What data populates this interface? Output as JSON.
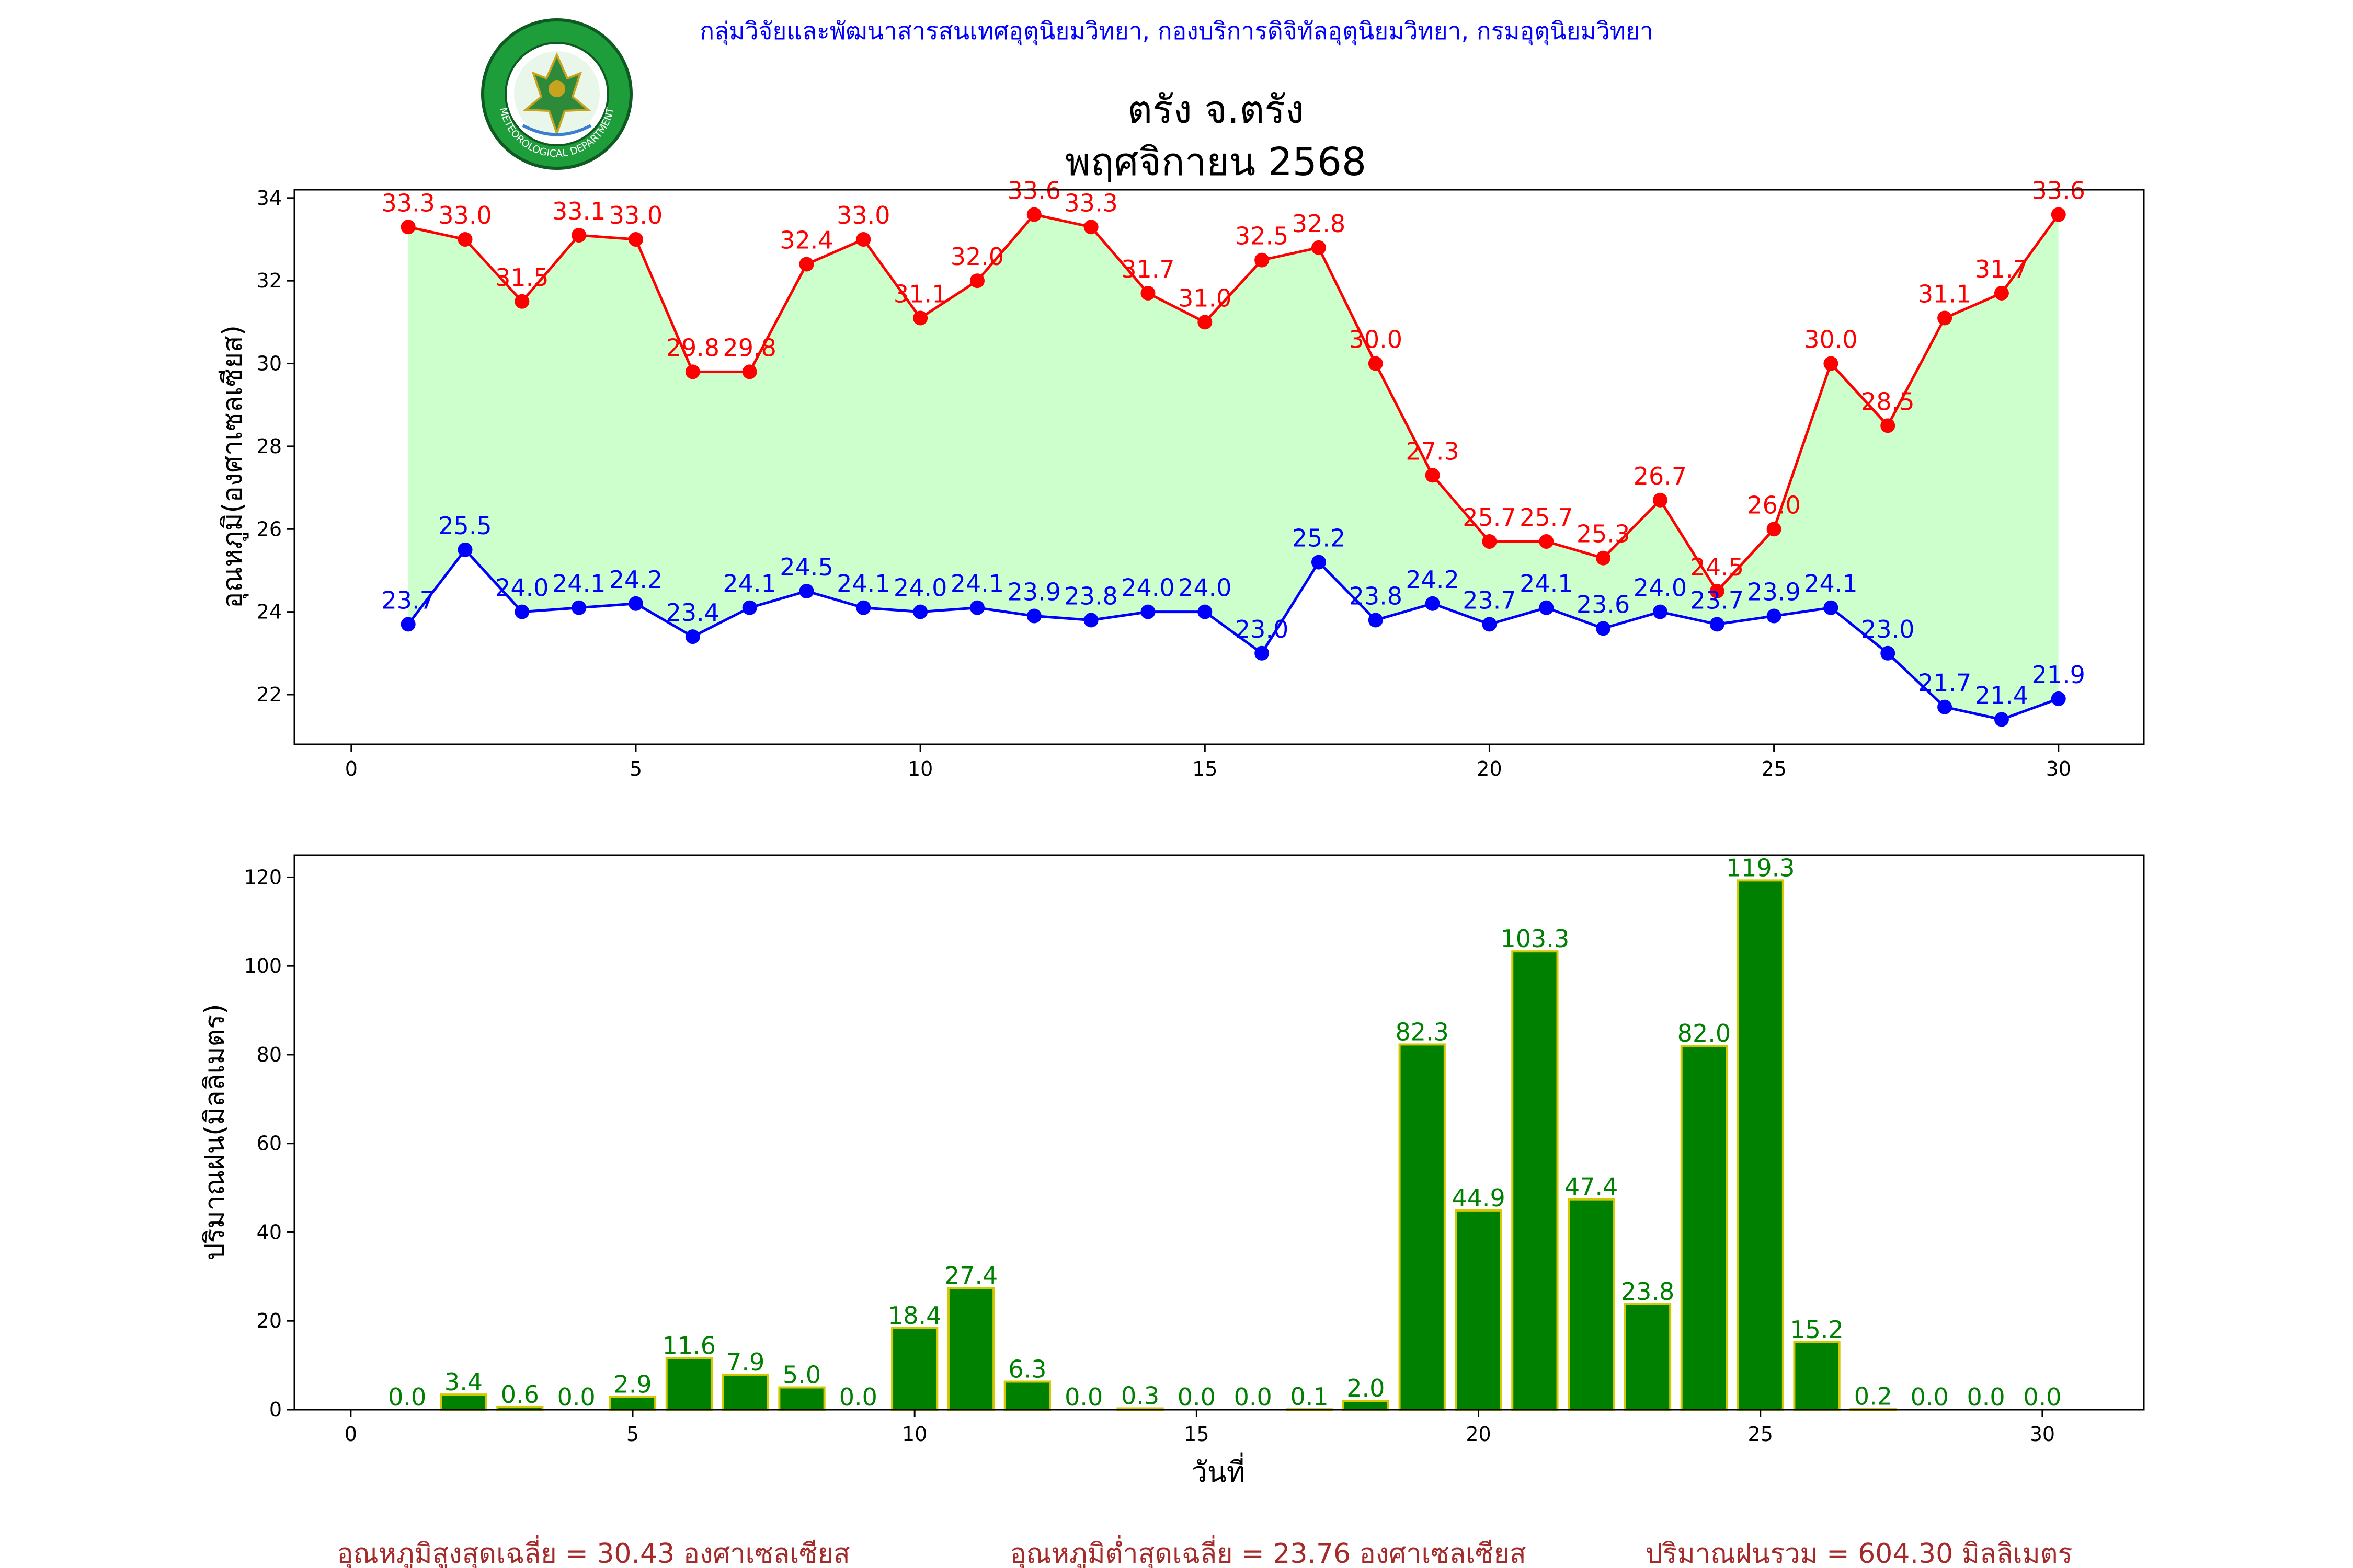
{
  "header": {
    "org_line": "กลุ่มวิจัยและพัฒนาสารสนเทศอุตุนิยมวิทยา, กองบริการดิจิทัลอุตุนิยมวิทยา, กรมอุตุนิยมวิทยา",
    "title_line1": "ตรัง จ.ตรัง",
    "title_line2": "พฤศจิกายน 2568",
    "logo_text_top": "กรมอุตุนิยมวิทยา",
    "logo_text_bottom": "METEOROLOGICAL DEPARTMENT"
  },
  "colors": {
    "max_line": "#ff0000",
    "min_line": "#0000ff",
    "fill": "#ccffcc",
    "bar_fill": "#008000",
    "bar_edge": "#d4c800",
    "bar_label": "#008000",
    "header_text": "#0000ff",
    "footer_text": "#a52a2a"
  },
  "chart_data": [
    {
      "type": "line",
      "ylabel": "อุณหภูมิ(องศาเซลเซียส)",
      "xlabel": "",
      "xlim": [
        -1,
        31.5
      ],
      "ylim": [
        20.8,
        34.2
      ],
      "x_ticks": [
        0,
        5,
        10,
        15,
        20,
        25,
        30
      ],
      "y_ticks": [
        22,
        24,
        26,
        28,
        30,
        32,
        34
      ],
      "grid": false,
      "x": [
        1,
        2,
        3,
        4,
        5,
        6,
        7,
        8,
        9,
        10,
        11,
        12,
        13,
        14,
        15,
        16,
        17,
        18,
        19,
        20,
        21,
        22,
        23,
        24,
        25,
        26,
        27,
        28,
        29,
        30
      ],
      "series": [
        {
          "key": "max",
          "values": [
            33.3,
            33.0,
            31.5,
            33.1,
            33.0,
            29.8,
            29.8,
            32.4,
            33.0,
            31.1,
            32.0,
            33.6,
            33.3,
            31.7,
            31.0,
            32.5,
            32.8,
            30.0,
            27.3,
            25.7,
            25.7,
            25.3,
            26.7,
            24.5,
            26.0,
            30.0,
            28.5,
            31.1,
            31.7,
            33.6
          ],
          "labels": [
            "33.3",
            "33.0",
            "31.5",
            "33.1",
            "33.0",
            "29.8",
            "29.8",
            "32.4",
            "33.0",
            "31.1",
            "32.0",
            "33.6",
            "33.3",
            "31.7",
            "31.0",
            "32.5",
            "32.8",
            "30.0",
            "27.3",
            "25.7",
            "25.7",
            "25.3",
            "26.7",
            "24.5",
            "26.0",
            "30.0",
            "28.5",
            "31.1",
            "31.7",
            "33.6"
          ]
        },
        {
          "key": "min",
          "values": [
            23.7,
            25.5,
            24.0,
            24.1,
            24.2,
            23.4,
            24.1,
            24.5,
            24.1,
            24.0,
            24.1,
            23.9,
            23.8,
            24.0,
            24.0,
            23.0,
            25.2,
            23.8,
            24.2,
            23.7,
            24.1,
            23.6,
            24.0,
            23.7,
            23.9,
            24.1,
            23.0,
            21.7,
            21.4,
            21.9
          ],
          "labels": [
            "23.7",
            "25.5",
            "24.0",
            "24.1",
            "24.2",
            "23.4",
            "24.1",
            "24.5",
            "24.1",
            "24.0",
            "24.1",
            "23.9",
            "23.8",
            "24.0",
            "24.0",
            "23.0",
            "25.2",
            "23.8",
            "24.2",
            "23.7",
            "24.1",
            "23.6",
            "24.0",
            "23.7",
            "23.9",
            "24.1",
            "23.0",
            "21.7",
            "21.4",
            "21.9"
          ]
        }
      ]
    },
    {
      "type": "bar",
      "ylabel": "ปริมาณฝน(มิลลิเมตร)",
      "xlabel": "วันที่",
      "xlim": [
        -1,
        31.8
      ],
      "ylim": [
        0,
        125
      ],
      "x_ticks": [
        0,
        5,
        10,
        15,
        20,
        25,
        30
      ],
      "y_ticks": [
        0,
        20,
        40,
        60,
        80,
        100,
        120
      ],
      "grid": false,
      "x": [
        1,
        2,
        3,
        4,
        5,
        6,
        7,
        8,
        9,
        10,
        11,
        12,
        13,
        14,
        15,
        16,
        17,
        18,
        19,
        20,
        21,
        22,
        23,
        24,
        25,
        26,
        27,
        28,
        29,
        30
      ],
      "values": [
        0.0,
        3.4,
        0.6,
        0.0,
        2.9,
        11.6,
        7.9,
        5.0,
        0.0,
        18.4,
        27.4,
        6.3,
        0.0,
        0.3,
        0.0,
        0.0,
        0.1,
        2.0,
        82.3,
        44.9,
        103.3,
        47.4,
        23.8,
        82.0,
        119.3,
        15.2,
        0.2,
        0.0,
        0.0,
        0.0
      ],
      "labels": [
        "0.0",
        "3.4",
        "0.6",
        "0.0",
        "2.9",
        "11.6",
        "7.9",
        "5.0",
        "0.0",
        "18.4",
        "27.4",
        "6.3",
        "0.0",
        "0.3",
        "0.0",
        "0.0",
        "0.1",
        "2.0",
        "82.3",
        "44.9",
        "103.3",
        "47.4",
        "23.8",
        "82.0",
        "119.3",
        "15.2",
        "0.2",
        "0.0",
        "0.0",
        "0.0"
      ]
    }
  ],
  "footer": {
    "avg_max": "อุณหภูมิสูงสุดเฉลี่ย = 30.43 องศาเซลเซียส",
    "avg_min": "อุณหภูมิต่ำสุดเฉลี่ย = 23.76 องศาเซลเซียส",
    "total_rain": "ปริมาณฝนรวม = 604.30 มิลลิเมตร"
  }
}
